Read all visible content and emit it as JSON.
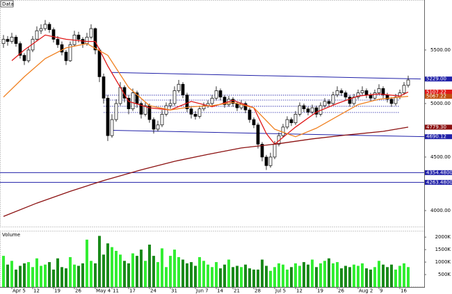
{
  "chart_data": {
    "type": "candlestick",
    "title": "Data",
    "volume_title": "Volume",
    "categories": [
      null,
      null,
      "Apr 5",
      null,
      null,
      null,
      null,
      "12",
      null,
      null,
      null,
      null,
      "19",
      null,
      null,
      null,
      null,
      "26",
      null,
      null,
      null,
      null,
      "May 4",
      null,
      null,
      null,
      "11",
      null,
      null,
      null,
      "17",
      null,
      null,
      null,
      null,
      "24",
      null,
      null,
      null,
      null,
      "31",
      null,
      null,
      null,
      null,
      null,
      "Jun 7",
      null,
      null,
      null,
      null,
      "14",
      null,
      null,
      null,
      "21",
      null,
      null,
      null,
      null,
      "28",
      null,
      null,
      null,
      null,
      "Jul 5",
      null,
      null,
      null,
      null,
      "12",
      null,
      null,
      null,
      null,
      "19",
      null,
      null,
      null,
      null,
      "26",
      null,
      null,
      null,
      null,
      "Aug 2",
      null,
      null,
      null,
      null,
      "9",
      null,
      null,
      null,
      null,
      "16",
      null,
      null
    ],
    "candles": [
      [
        5560,
        5640,
        5520,
        5600
      ],
      [
        5600,
        5630,
        5540,
        5580
      ],
      [
        5580,
        5660,
        5560,
        5620
      ],
      [
        5620,
        5640,
        5530,
        5560
      ],
      [
        5560,
        5580,
        5420,
        5450
      ],
      [
        5450,
        5470,
        5360,
        5400
      ],
      [
        5400,
        5530,
        5380,
        5500
      ],
      [
        5500,
        5630,
        5480,
        5600
      ],
      [
        5600,
        5720,
        5580,
        5680
      ],
      [
        5680,
        5740,
        5650,
        5700
      ],
      [
        5700,
        5780,
        5680,
        5740
      ],
      [
        5740,
        5760,
        5660,
        5690
      ],
      [
        5690,
        5710,
        5570,
        5600
      ],
      [
        5600,
        5630,
        5520,
        5550
      ],
      [
        5550,
        5580,
        5450,
        5480
      ],
      [
        5480,
        5500,
        5360,
        5400
      ],
      [
        5400,
        5580,
        5390,
        5550
      ],
      [
        5550,
        5680,
        5530,
        5640
      ],
      [
        5640,
        5670,
        5570,
        5600
      ],
      [
        5600,
        5620,
        5520,
        5560
      ],
      [
        5560,
        5660,
        5540,
        5620
      ],
      [
        5620,
        5740,
        5600,
        5700
      ],
      [
        5700,
        5710,
        5460,
        5500
      ],
      [
        5500,
        5520,
        5200,
        5250
      ],
      [
        5250,
        5280,
        5000,
        5050
      ],
      [
        5050,
        5080,
        4650,
        4700
      ],
      [
        4700,
        4900,
        4680,
        4850
      ],
      [
        4850,
        5040,
        4830,
        5000
      ],
      [
        5000,
        5200,
        4980,
        5150
      ],
      [
        5150,
        5170,
        5010,
        5050
      ],
      [
        5050,
        5080,
        4900,
        4950
      ],
      [
        4950,
        5140,
        4930,
        5100
      ],
      [
        5100,
        5120,
        4960,
        5000
      ],
      [
        5000,
        5020,
        4860,
        4900
      ],
      [
        4900,
        5010,
        4880,
        4980
      ],
      [
        4980,
        5000,
        4820,
        4850
      ],
      [
        4850,
        4870,
        4720,
        4760
      ],
      [
        4760,
        4840,
        4740,
        4800
      ],
      [
        4800,
        4940,
        4780,
        4900
      ],
      [
        4900,
        5010,
        4880,
        4980
      ],
      [
        4980,
        5040,
        4950,
        5000
      ],
      [
        5000,
        5160,
        4980,
        5120
      ],
      [
        5120,
        5220,
        5100,
        5180
      ],
      [
        5180,
        5200,
        5050,
        5080
      ],
      [
        5080,
        5100,
        4920,
        4950
      ],
      [
        4950,
        4970,
        4860,
        4900
      ],
      [
        4900,
        4930,
        4850,
        4880
      ],
      [
        4880,
        4980,
        4860,
        4950
      ],
      [
        4950,
        5010,
        4930,
        4980
      ],
      [
        4980,
        5030,
        4960,
        5000
      ],
      [
        5000,
        5080,
        4980,
        5050
      ],
      [
        5050,
        5160,
        5030,
        5120
      ],
      [
        5120,
        5140,
        5030,
        5060
      ],
      [
        5060,
        5080,
        4960,
        4990
      ],
      [
        4990,
        5070,
        4970,
        5040
      ],
      [
        5040,
        5060,
        4970,
        5000
      ],
      [
        5000,
        5020,
        4930,
        4960
      ],
      [
        4960,
        5030,
        4940,
        5000
      ],
      [
        5000,
        5020,
        4910,
        4940
      ],
      [
        4940,
        4960,
        4820,
        4850
      ],
      [
        4850,
        4870,
        4770,
        4800
      ],
      [
        4800,
        4820,
        4580,
        4620
      ],
      [
        4620,
        4640,
        4460,
        4500
      ],
      [
        4500,
        4520,
        4380,
        4420
      ],
      [
        4420,
        4540,
        4400,
        4500
      ],
      [
        4500,
        4650,
        4480,
        4620
      ],
      [
        4620,
        4730,
        4600,
        4700
      ],
      [
        4700,
        4810,
        4680,
        4780
      ],
      [
        4780,
        4880,
        4760,
        4850
      ],
      [
        4850,
        4870,
        4790,
        4820
      ],
      [
        4820,
        4930,
        4800,
        4900
      ],
      [
        4900,
        5010,
        4880,
        4980
      ],
      [
        4980,
        5000,
        4920,
        4950
      ],
      [
        4950,
        4970,
        4890,
        4920
      ],
      [
        4920,
        4990,
        4900,
        4960
      ],
      [
        4960,
        4980,
        4870,
        4900
      ],
      [
        4900,
        5010,
        4880,
        4980
      ],
      [
        4980,
        5050,
        4960,
        5020
      ],
      [
        5020,
        5040,
        4970,
        5000
      ],
      [
        5000,
        5110,
        4980,
        5080
      ],
      [
        5080,
        5160,
        5060,
        5120
      ],
      [
        5120,
        5140,
        5070,
        5100
      ],
      [
        5100,
        5120,
        5030,
        5060
      ],
      [
        5060,
        5080,
        4970,
        5000
      ],
      [
        5000,
        5090,
        4980,
        5060
      ],
      [
        5060,
        5130,
        5040,
        5100
      ],
      [
        5100,
        5160,
        5080,
        5120
      ],
      [
        5120,
        5140,
        5050,
        5080
      ],
      [
        5080,
        5100,
        5020,
        5050
      ],
      [
        5050,
        5130,
        5030,
        5100
      ],
      [
        5100,
        5180,
        5080,
        5140
      ],
      [
        5140,
        5160,
        5050,
        5080
      ],
      [
        5080,
        5100,
        5010,
        5040
      ],
      [
        5040,
        5060,
        4970,
        5000
      ],
      [
        5000,
        5090,
        4980,
        5060
      ],
      [
        5060,
        5130,
        5040,
        5100
      ],
      [
        5100,
        5200,
        5080,
        5170
      ],
      [
        5170,
        5260,
        5150,
        5220
      ]
    ],
    "up_color": "#ffffff",
    "down_color": "#000000",
    "ylim": [
      3857,
      5967
    ],
    "yticks": [
      {
        "value": 4000,
        "label": "4000.00"
      },
      {
        "value": 4500,
        "label": "4500.00"
      },
      {
        "value": 5000,
        "label": "5000.00"
      },
      {
        "value": 5500,
        "label": "5500.00"
      }
    ],
    "lines": [
      {
        "color": "#e01818",
        "x": [
          2,
          5,
          10,
          15,
          20,
          22,
          25,
          30,
          35,
          40,
          45,
          50,
          55,
          60,
          63,
          65,
          70,
          75,
          80,
          85,
          90,
          95,
          97
        ],
        "values": [
          5400,
          5500,
          5640,
          5600,
          5580,
          5580,
          5350,
          5020,
          4960,
          4940,
          5020,
          4970,
          5030,
          4960,
          4720,
          4620,
          4780,
          4920,
          5000,
          5070,
          5090,
          5070,
          5107.22
        ]
      },
      {
        "color": "#f08020",
        "x": [
          0,
          5,
          10,
          15,
          20,
          25,
          30,
          35,
          40,
          45,
          50,
          55,
          60,
          65,
          70,
          75,
          80,
          85,
          90,
          95,
          97
        ],
        "values": [
          5060,
          5250,
          5420,
          5520,
          5560,
          5450,
          5150,
          4980,
          4940,
          4970,
          4980,
          5010,
          4960,
          4760,
          4690,
          4770,
          4880,
          4990,
          5040,
          5060,
          5067.22
        ]
      },
      {
        "color": "#8b1010",
        "x": [
          0,
          8,
          16,
          24,
          33,
          41,
          49,
          57,
          66,
          74,
          82,
          91,
          97
        ],
        "values": [
          3945,
          4070,
          4180,
          4280,
          4380,
          4460,
          4525,
          4585,
          4625,
          4670,
          4705,
          4740,
          4779.3
        ]
      }
    ],
    "channels": [
      {
        "color": "#2020a8",
        "x": [
          26,
          100
        ],
        "values": [
          5290,
          5229
        ]
      },
      {
        "color": "#2020a8",
        "x": [
          26,
          101
        ],
        "values": [
          4750,
          4690.12
        ]
      }
    ],
    "dotted_levels": [
      {
        "color": "#2020a8",
        "x": [
          24,
          95
        ],
        "values": [
          5078,
          5078
        ]
      },
      {
        "color": "#2020a8",
        "x": [
          24,
          95
        ],
        "values": [
          5032,
          5032
        ]
      },
      {
        "color": "#2020a8",
        "x": [
          24,
          95
        ],
        "values": [
          4974,
          4974
        ]
      },
      {
        "color": "#2020a8",
        "x": [
          24,
          95
        ],
        "values": [
          4916,
          4916
        ]
      }
    ],
    "levels": [
      {
        "color": "#2020a8",
        "value": 4354.48
      },
      {
        "color": "#2020a8",
        "value": 4263.48
      }
    ],
    "price_labels": [
      {
        "value": 5229,
        "label": "5229.00",
        "color": "#2020a8"
      },
      {
        "value": 5107.22,
        "label": "5107.22",
        "color": "#e01818"
      },
      {
        "value": 5067.22,
        "label": "5067.22",
        "color": "#c05010"
      },
      {
        "value": 4779.3,
        "label": "4779.30",
        "color": "#8b1010"
      },
      {
        "value": 4690.12,
        "label": "4690.12",
        "color": "#2020a8"
      },
      {
        "value": 4354.48,
        "label": "4354.4800",
        "color": "#2020a8"
      },
      {
        "value": 4263.48,
        "label": "4263.4800",
        "color": "#2020a8"
      }
    ],
    "volume": {
      "values": [
        1250,
        900,
        1050,
        700,
        850,
        950,
        1000,
        800,
        1150,
        850,
        900,
        1000,
        700,
        1150,
        800,
        750,
        1200,
        900,
        850,
        950,
        1900,
        1050,
        950,
        2050,
        1300,
        1750,
        1600,
        1450,
        1300,
        1050,
        950,
        1350,
        1250,
        1500,
        1050,
        1700,
        1250,
        1000,
        1550,
        800,
        1250,
        1500,
        1200,
        1100,
        950,
        1000,
        850,
        1200,
        1050,
        900,
        800,
        1000,
        750,
        900,
        1100,
        800,
        850,
        800,
        900,
        750,
        700,
        700,
        1100,
        850,
        650,
        800,
        950,
        900,
        700,
        800,
        950,
        850,
        1000,
        900,
        1100,
        800,
        950,
        1050,
        1150,
        950,
        1000,
        750,
        850,
        800,
        900,
        850,
        950,
        750,
        700,
        800,
        1050,
        900,
        800,
        900,
        700,
        850,
        950,
        800
      ],
      "up_color": "#33ee33",
      "down_color": "#1a8a1a",
      "ylim": [
        0,
        2200
      ],
      "yticks": [
        {
          "value": 500,
          "label": "500K"
        },
        {
          "value": 1000,
          "label": "1000K"
        },
        {
          "value": 1500,
          "label": "1500K"
        },
        {
          "value": 2000,
          "label": "2000K"
        }
      ]
    }
  }
}
